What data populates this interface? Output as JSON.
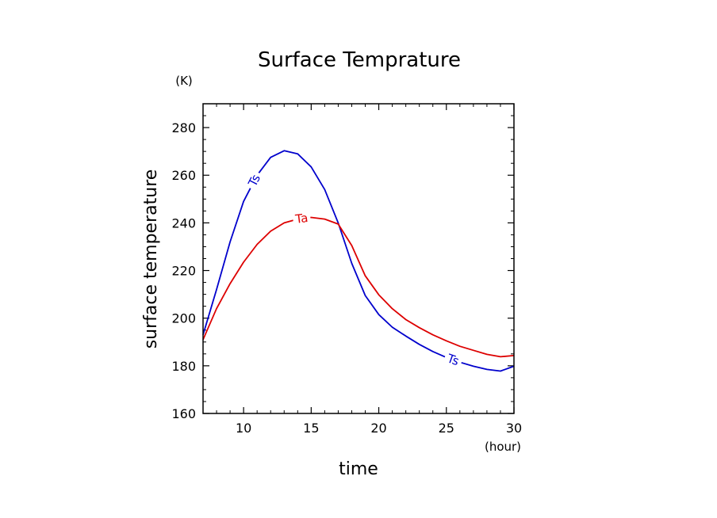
{
  "chart_data": {
    "type": "line",
    "title": "Surface Temprature",
    "xlabel": "time",
    "ylabel": "surface temperature",
    "x_unit": "(hour)",
    "y_unit": "(K)",
    "xlim": [
      7,
      30
    ],
    "ylim": [
      160,
      290
    ],
    "xticks": [
      10,
      15,
      20,
      25,
      30
    ],
    "yticks": [
      160,
      180,
      200,
      220,
      240,
      260,
      280
    ],
    "x": [
      7,
      8,
      9,
      10,
      11,
      12,
      13,
      14,
      15,
      16,
      17,
      18,
      19,
      20,
      21,
      22,
      23,
      24,
      25,
      26,
      27,
      28,
      29,
      30
    ],
    "series": [
      {
        "name": "Ts",
        "color": "#0000cc",
        "values": [
          193,
          212,
          232,
          249,
          260,
          267.5,
          270.3,
          269,
          263.5,
          254,
          240,
          223,
          209.5,
          201.5,
          196.2,
          192.5,
          189,
          186,
          183.5,
          181.5,
          179.8,
          178.5,
          177.8,
          179.8
        ],
        "label_positions": [
          10.8,
          25.5
        ]
      },
      {
        "name": "Ta",
        "color": "#dd0000",
        "values": [
          191,
          204,
          214.5,
          223.5,
          231,
          236.5,
          240,
          241.6,
          242.3,
          241.6,
          239.5,
          230.5,
          217.8,
          209.8,
          204,
          199.4,
          196,
          193,
          190.5,
          188.2,
          186.5,
          184.8,
          183.8,
          184.3
        ],
        "label_positions": [
          14.3
        ]
      }
    ]
  }
}
